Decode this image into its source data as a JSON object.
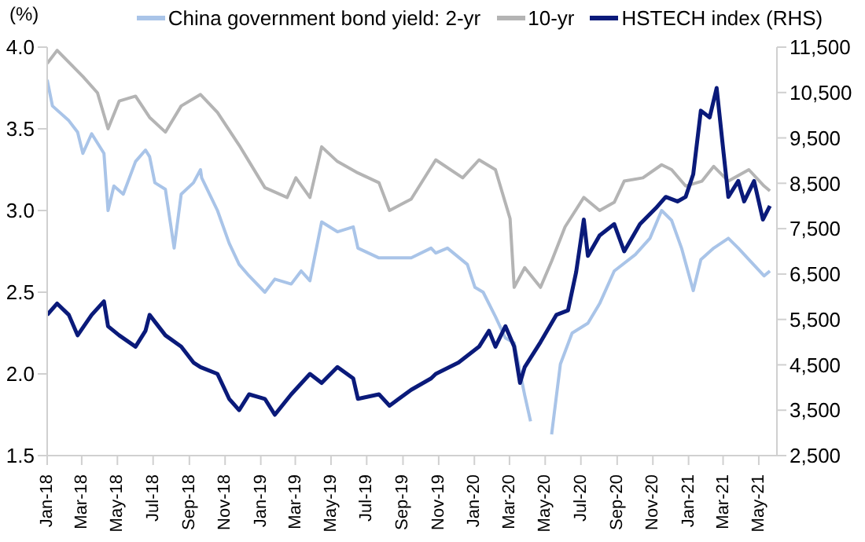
{
  "chart_data": {
    "type": "line",
    "ylabel": "(%)",
    "xlim": [
      "2018-01-01",
      "2021-06-01"
    ],
    "xticks": [
      {
        "value": "2018-01-01",
        "label": "Jan-18"
      },
      {
        "value": "2018-03-01",
        "label": "Mar-18"
      },
      {
        "value": "2018-05-01",
        "label": "May-18"
      },
      {
        "value": "2018-07-01",
        "label": "Jul-18"
      },
      {
        "value": "2018-09-01",
        "label": "Sep-18"
      },
      {
        "value": "2018-11-01",
        "label": "Nov-18"
      },
      {
        "value": "2019-01-01",
        "label": "Jan-19"
      },
      {
        "value": "2019-03-01",
        "label": "Mar-19"
      },
      {
        "value": "2019-05-01",
        "label": "May-19"
      },
      {
        "value": "2019-07-01",
        "label": "Jul-19"
      },
      {
        "value": "2019-09-01",
        "label": "Sep-19"
      },
      {
        "value": "2019-11-01",
        "label": "Nov-19"
      },
      {
        "value": "2020-01-01",
        "label": "Jan-20"
      },
      {
        "value": "2020-03-01",
        "label": "Mar-20"
      },
      {
        "value": "2020-05-01",
        "label": "May-20"
      },
      {
        "value": "2020-07-01",
        "label": "Jul-20"
      },
      {
        "value": "2020-09-01",
        "label": "Sep-20"
      },
      {
        "value": "2020-11-01",
        "label": "Nov-20"
      },
      {
        "value": "2021-01-01",
        "label": "Jan-21"
      },
      {
        "value": "2021-03-01",
        "label": "Mar-21"
      },
      {
        "value": "2021-05-01",
        "label": "May-21"
      }
    ],
    "ylim": [
      1.5,
      4.0
    ],
    "yticks": [
      {
        "value": 1.5,
        "label": "1.5"
      },
      {
        "value": 2,
        "label": "2.0"
      },
      {
        "value": 2.5,
        "label": "2.5"
      },
      {
        "value": 3,
        "label": "3.0"
      },
      {
        "value": 3.5,
        "label": "3.5"
      },
      {
        "value": 4,
        "label": "4.0"
      }
    ],
    "y2lim": [
      2500,
      11500
    ],
    "y2ticks": [
      {
        "value": 2500,
        "label": "2,500"
      },
      {
        "value": 3500,
        "label": "3,500"
      },
      {
        "value": 4500,
        "label": "4,500"
      },
      {
        "value": 5500,
        "label": "5,500"
      },
      {
        "value": 6500,
        "label": "6,500"
      },
      {
        "value": 7500,
        "label": "7,500"
      },
      {
        "value": 8500,
        "label": "8,500"
      },
      {
        "value": 9500,
        "label": "9,500"
      },
      {
        "value": 10500,
        "label": "10,500"
      },
      {
        "value": 11500,
        "label": "11,500"
      }
    ],
    "legend": "top",
    "marker": "none",
    "line_style": "solid",
    "series": [
      {
        "name": "China government bond yield: 2-yr",
        "color": "#a9c4e8",
        "x": [
          "2018-01-01",
          "2018-01-10",
          "2018-02-07",
          "2018-02-22",
          "2018-03-03",
          "2018-03-18",
          "2018-04-08",
          "2018-04-15",
          "2018-04-25",
          "2018-05-11",
          "2018-06-01",
          "2018-06-18",
          "2018-06-25",
          "2018-07-04",
          "2018-07-22",
          "2018-08-06",
          "2018-08-18",
          "2018-09-08",
          "2018-09-20",
          "2018-09-22",
          "2018-10-19",
          "2018-11-08",
          "2018-11-25",
          "2018-12-12",
          "2019-01-08",
          "2019-01-25",
          "2019-02-22",
          "2019-03-11",
          "2019-03-26",
          "2019-04-15",
          "2019-05-12",
          "2019-06-08",
          "2019-06-16",
          "2019-07-22",
          "2019-09-15",
          "2019-10-19",
          "2019-10-27",
          "2019-11-16",
          "2019-12-20",
          "2020-01-02",
          "2020-01-16",
          "2020-02-06",
          "2020-02-23",
          "2020-03-09",
          "2020-03-27",
          "2020-04-06",
          "2020-04-18",
          "2020-05-08",
          "2020-05-12",
          "2020-05-27",
          "2020-06-16",
          "2020-07-13",
          "2020-08-02",
          "2020-08-27",
          "2020-10-02",
          "2020-10-27",
          "2020-11-16",
          "2020-12-03",
          "2020-12-20",
          "2021-01-09",
          "2021-01-22",
          "2021-02-13",
          "2021-03-10",
          "2021-03-27",
          "2021-04-14",
          "2021-05-10",
          "2021-05-20"
        ],
        "values": [
          3.8,
          3.64,
          3.55,
          3.48,
          3.35,
          3.47,
          3.35,
          3.0,
          3.15,
          3.1,
          3.3,
          3.37,
          3.33,
          3.17,
          3.13,
          2.77,
          3.1,
          3.17,
          3.25,
          3.2,
          3.0,
          2.8,
          2.67,
          2.6,
          2.5,
          2.58,
          2.55,
          2.63,
          2.57,
          2.93,
          2.87,
          2.9,
          2.77,
          2.71,
          2.71,
          2.77,
          2.74,
          2.77,
          2.67,
          2.53,
          2.5,
          2.35,
          2.22,
          2.19,
          1.87,
          1.71,
          null,
          null,
          1.63,
          2.06,
          2.25,
          2.31,
          2.43,
          2.63,
          2.73,
          2.83,
          3.0,
          2.94,
          2.77,
          2.51,
          2.7,
          2.77,
          2.83,
          2.77,
          2.7,
          2.6,
          2.63
        ]
      },
      {
        "name": "10-yr",
        "color": "#b4b4b4",
        "x": [
          "2018-01-01",
          "2018-01-18",
          "2018-03-03",
          "2018-03-28",
          "2018-04-15",
          "2018-05-04",
          "2018-06-01",
          "2018-06-25",
          "2018-07-22",
          "2018-08-18",
          "2018-09-20",
          "2018-10-19",
          "2018-11-25",
          "2018-12-12",
          "2019-01-08",
          "2019-02-15",
          "2019-03-02",
          "2019-03-26",
          "2019-04-15",
          "2019-05-12",
          "2019-06-16",
          "2019-07-22",
          "2019-08-09",
          "2019-09-15",
          "2019-10-27",
          "2019-12-12",
          "2020-01-09",
          "2020-02-06",
          "2020-03-02",
          "2020-03-09",
          "2020-03-27",
          "2020-04-23",
          "2020-05-12",
          "2020-06-04",
          "2020-07-06",
          "2020-08-02",
          "2020-08-27",
          "2020-09-13",
          "2020-10-15",
          "2020-11-16",
          "2020-12-03",
          "2020-12-27",
          "2021-01-24",
          "2021-02-13",
          "2021-03-10",
          "2021-04-14",
          "2021-05-10",
          "2021-05-20"
        ],
        "values": [
          3.9,
          3.98,
          3.82,
          3.72,
          3.5,
          3.67,
          3.7,
          3.57,
          3.48,
          3.64,
          3.71,
          3.6,
          3.4,
          3.3,
          3.14,
          3.08,
          3.2,
          3.08,
          3.39,
          3.3,
          3.23,
          3.17,
          3.0,
          3.07,
          3.31,
          3.2,
          3.31,
          3.25,
          2.95,
          2.53,
          2.65,
          2.53,
          2.69,
          2.9,
          3.08,
          3.0,
          3.05,
          3.18,
          3.2,
          3.28,
          3.25,
          3.15,
          3.18,
          3.27,
          3.18,
          3.25,
          3.15,
          3.12
        ]
      },
      {
        "name": "HSTECH index (RHS)",
        "color": "#0a1a7a",
        "axis": "y2",
        "x": [
          "2018-01-01",
          "2018-01-18",
          "2018-02-07",
          "2018-02-22",
          "2018-03-18",
          "2018-04-08",
          "2018-04-15",
          "2018-05-04",
          "2018-06-01",
          "2018-06-18",
          "2018-06-25",
          "2018-07-22",
          "2018-08-18",
          "2018-09-08",
          "2018-09-20",
          "2018-10-19",
          "2018-11-08",
          "2018-11-25",
          "2018-12-12",
          "2019-01-08",
          "2019-01-25",
          "2019-02-22",
          "2019-03-26",
          "2019-04-15",
          "2019-05-12",
          "2019-06-08",
          "2019-06-16",
          "2019-07-22",
          "2019-08-09",
          "2019-09-15",
          "2019-10-19",
          "2019-10-27",
          "2019-12-05",
          "2020-01-09",
          "2020-01-26",
          "2020-02-06",
          "2020-02-23",
          "2020-03-09",
          "2020-03-19",
          "2020-03-27",
          "2020-04-23",
          "2020-05-20",
          "2020-06-09",
          "2020-06-23",
          "2020-07-06",
          "2020-07-13",
          "2020-08-02",
          "2020-08-27",
          "2020-09-13",
          "2020-10-10",
          "2020-11-06",
          "2020-11-23",
          "2020-12-13",
          "2020-12-27",
          "2021-01-09",
          "2021-01-22",
          "2021-02-06",
          "2021-02-18",
          "2021-03-02",
          "2021-03-10",
          "2021-03-27",
          "2021-04-06",
          "2021-04-23",
          "2021-05-08",
          "2021-05-20"
        ],
        "values": [
          5600,
          5850,
          5600,
          5150,
          5600,
          5900,
          5350,
          5150,
          4900,
          5250,
          5600,
          5150,
          4900,
          4550,
          4450,
          4300,
          3750,
          3500,
          3850,
          3750,
          3400,
          3850,
          4300,
          4100,
          4450,
          4200,
          3750,
          3850,
          3600,
          3950,
          4200,
          4300,
          4550,
          4900,
          5250,
          4900,
          5350,
          4900,
          4100,
          4450,
          5000,
          5600,
          5700,
          6550,
          7700,
          6900,
          7350,
          7600,
          7000,
          7600,
          7950,
          8200,
          8100,
          8200,
          8700,
          10100,
          9950,
          10600,
          9150,
          8200,
          8550,
          8100,
          8550,
          7700,
          8000
        ]
      }
    ]
  }
}
